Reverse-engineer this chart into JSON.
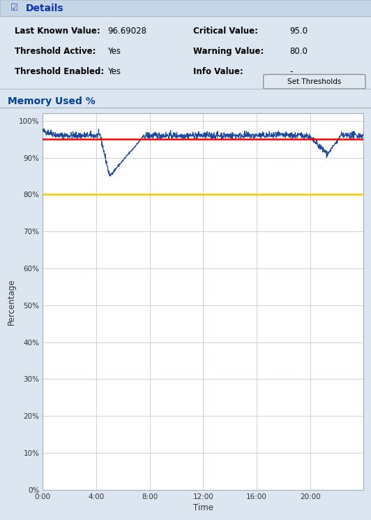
{
  "title": "Memory Used %",
  "header_title": "Details",
  "fields_left": [
    [
      "Last Known Value:",
      "96.69028"
    ],
    [
      "Threshold Active:",
      "Yes"
    ],
    [
      "Threshold Enabled:",
      "Yes"
    ]
  ],
  "fields_right": [
    [
      "Critical Value:",
      "95.0"
    ],
    [
      "Warning Value:",
      "80.0"
    ],
    [
      "Info Value:",
      "-"
    ]
  ],
  "button_text": "Set Thresholds",
  "xlabel": "Time",
  "ylabel": "Percentage",
  "yticks": [
    0,
    10,
    20,
    30,
    40,
    50,
    60,
    70,
    80,
    90,
    100
  ],
  "ytick_labels": [
    "0%",
    "10%",
    "20%",
    "30%",
    "40%",
    "50%",
    "60%",
    "70%",
    "80%",
    "90%",
    "100%"
  ],
  "xtick_labels": [
    "0:00",
    "4:00",
    "8:00",
    "12:00",
    "16:00",
    "20:00"
  ],
  "critical_value": 95.0,
  "warning_value": 80.0,
  "critical_color": "#ff0000",
  "warning_color": "#f5c800",
  "line_color": "#1a4a9e",
  "panel_bg": "#dce6f0",
  "chart_bg": "#ffffff",
  "grid_color": "#c0ccd8",
  "title_color": "#0040a0",
  "header_bar_color": "#c5d5e5"
}
